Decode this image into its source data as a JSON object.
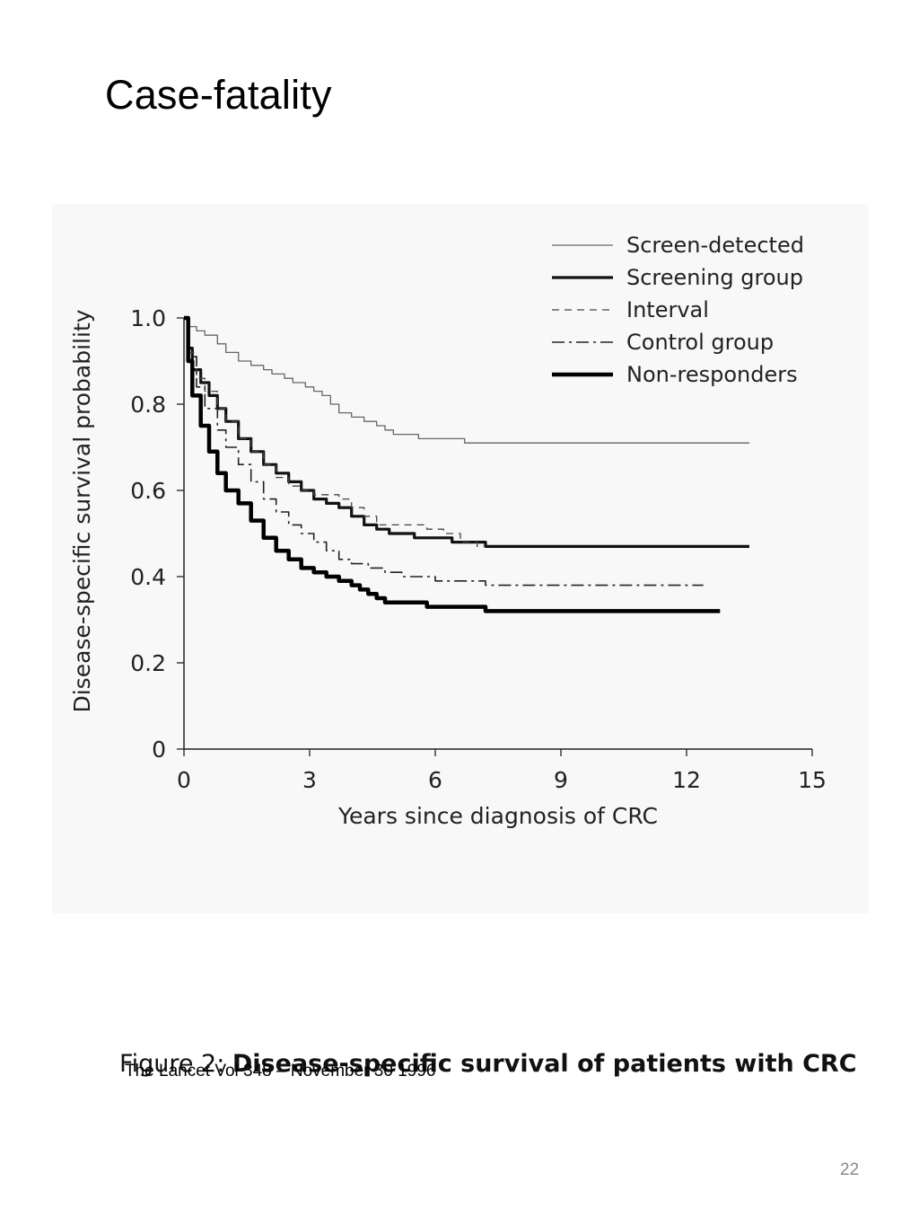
{
  "slide": {
    "title": "Case-fatality",
    "caption_prefix": "Figure 2:",
    "caption_bold": "Disease-specific survival of patients with CRC",
    "source": "The Lancet Vol 348 – November 30 1996",
    "page_number": "22"
  },
  "chart_data": {
    "type": "line",
    "title": "",
    "xlabel": "Years since diagnosis of CRC",
    "ylabel": "Disease-specific survival probability",
    "xlim": [
      0,
      15
    ],
    "ylim": [
      0,
      1.0
    ],
    "xticks": [
      "0",
      "3",
      "6",
      "9",
      "12",
      "15"
    ],
    "yticks": [
      "0",
      "0.2",
      "0.4",
      "0.6",
      "0.8",
      "1.0"
    ],
    "grid": false,
    "legend_position": "top-right",
    "series": [
      {
        "name": "Screen-detected",
        "style": "thin-solid",
        "color": "#666666",
        "x": [
          0,
          0.1,
          0.3,
          0.5,
          0.8,
          1.0,
          1.3,
          1.6,
          1.9,
          2.1,
          2.4,
          2.6,
          2.9,
          3.1,
          3.3,
          3.5,
          3.7,
          4.0,
          4.3,
          4.6,
          4.8,
          5.0,
          5.3,
          5.6,
          6.0,
          6.4,
          6.7,
          7.0,
          8.0,
          10.0,
          12.0,
          13.5
        ],
        "y": [
          1.0,
          0.98,
          0.97,
          0.96,
          0.94,
          0.92,
          0.9,
          0.89,
          0.88,
          0.87,
          0.86,
          0.85,
          0.84,
          0.83,
          0.82,
          0.8,
          0.78,
          0.77,
          0.76,
          0.75,
          0.74,
          0.73,
          0.73,
          0.72,
          0.72,
          0.72,
          0.71,
          0.71,
          0.71,
          0.71,
          0.71,
          0.71
        ]
      },
      {
        "name": "Screening group",
        "style": "thick-solid",
        "color": "#111111",
        "x": [
          0,
          0.1,
          0.2,
          0.4,
          0.6,
          0.8,
          1.0,
          1.3,
          1.6,
          1.9,
          2.2,
          2.5,
          2.8,
          3.1,
          3.4,
          3.7,
          4.0,
          4.3,
          4.6,
          4.9,
          5.2,
          5.5,
          5.8,
          6.1,
          6.4,
          6.8,
          7.2,
          8.0,
          10.0,
          12.0,
          13.5
        ],
        "y": [
          1.0,
          0.93,
          0.88,
          0.85,
          0.82,
          0.79,
          0.76,
          0.72,
          0.69,
          0.66,
          0.64,
          0.62,
          0.6,
          0.58,
          0.57,
          0.56,
          0.54,
          0.52,
          0.51,
          0.5,
          0.5,
          0.49,
          0.49,
          0.49,
          0.48,
          0.48,
          0.47,
          0.47,
          0.47,
          0.47,
          0.47
        ]
      },
      {
        "name": "Interval",
        "style": "dashed",
        "color": "#444444",
        "x": [
          0,
          0.1,
          0.3,
          0.5,
          0.8,
          1.0,
          1.3,
          1.6,
          1.9,
          2.2,
          2.5,
          2.8,
          3.1,
          3.4,
          3.7,
          4.0,
          4.3,
          4.6,
          5.0,
          5.4,
          5.8,
          6.2,
          6.6,
          7.0,
          7.2
        ],
        "y": [
          1.0,
          0.92,
          0.86,
          0.83,
          0.79,
          0.76,
          0.72,
          0.69,
          0.66,
          0.63,
          0.61,
          0.6,
          0.59,
          0.59,
          0.58,
          0.56,
          0.54,
          0.52,
          0.52,
          0.52,
          0.51,
          0.5,
          0.48,
          0.47,
          0.47
        ]
      },
      {
        "name": "Control group",
        "style": "dash-dot",
        "color": "#222222",
        "x": [
          0,
          0.1,
          0.3,
          0.5,
          0.8,
          1.0,
          1.3,
          1.6,
          1.9,
          2.2,
          2.5,
          2.8,
          3.1,
          3.4,
          3.7,
          4.0,
          4.4,
          4.8,
          5.2,
          5.6,
          6.0,
          6.5,
          7.0,
          7.2,
          8.0,
          10.0,
          12.4
        ],
        "y": [
          1.0,
          0.91,
          0.84,
          0.79,
          0.74,
          0.7,
          0.66,
          0.62,
          0.58,
          0.55,
          0.52,
          0.5,
          0.48,
          0.46,
          0.44,
          0.43,
          0.42,
          0.41,
          0.4,
          0.4,
          0.39,
          0.39,
          0.39,
          0.38,
          0.38,
          0.38,
          0.38
        ]
      },
      {
        "name": "Non-responders",
        "style": "very-thick-solid",
        "color": "#000000",
        "x": [
          0,
          0.1,
          0.2,
          0.4,
          0.6,
          0.8,
          1.0,
          1.3,
          1.6,
          1.9,
          2.2,
          2.5,
          2.8,
          3.1,
          3.4,
          3.7,
          4.0,
          4.2,
          4.4,
          4.6,
          4.8,
          5.0,
          5.4,
          5.8,
          6.0,
          6.4,
          6.8,
          7.2,
          8.0,
          10.0,
          12.8
        ],
        "y": [
          1.0,
          0.9,
          0.82,
          0.75,
          0.69,
          0.64,
          0.6,
          0.57,
          0.53,
          0.49,
          0.46,
          0.44,
          0.42,
          0.41,
          0.4,
          0.39,
          0.38,
          0.37,
          0.36,
          0.35,
          0.34,
          0.34,
          0.34,
          0.33,
          0.33,
          0.33,
          0.33,
          0.32,
          0.32,
          0.32,
          0.32
        ]
      }
    ]
  }
}
